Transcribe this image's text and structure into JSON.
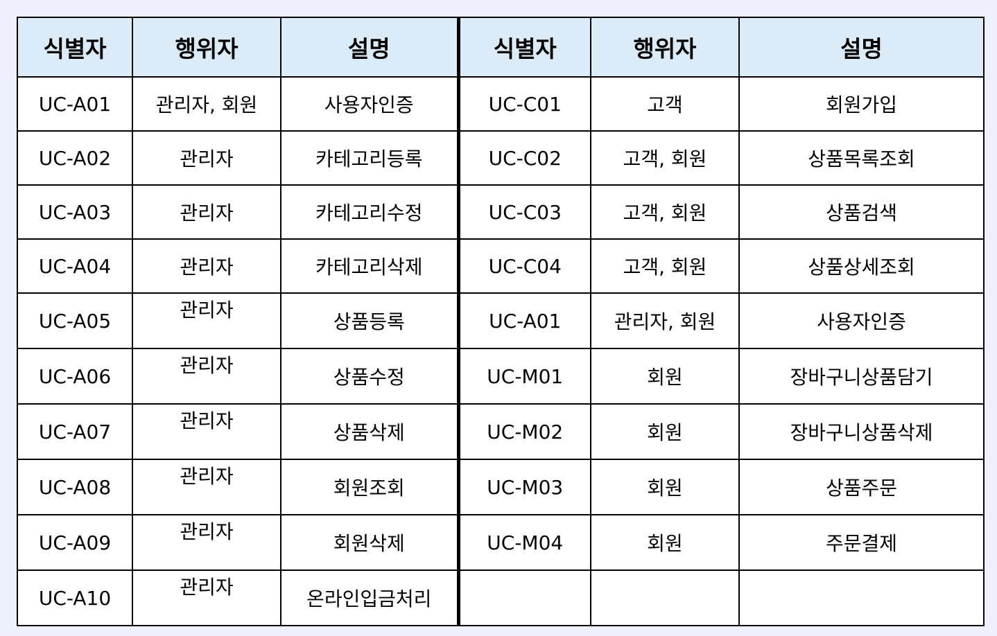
{
  "headers": [
    "식별자",
    "행위자",
    "설명",
    "식별자",
    "행위자",
    "설명"
  ],
  "rows": [
    {
      "left": {
        "id": "UC-A01",
        "actor": "관리자, 회원",
        "desc": "사용자인증"
      },
      "right": {
        "id": "UC-C01",
        "actor": "고객",
        "desc": "회원가입"
      }
    },
    {
      "left": {
        "id": "UC-A02",
        "actor": "관리자",
        "desc": "카테고리등록"
      },
      "right": {
        "id": "UC-C02",
        "actor": "고객, 회원",
        "desc": "상품목록조회"
      }
    },
    {
      "left": {
        "id": "UC-A03",
        "actor": "관리자",
        "desc": "카테고리수정"
      },
      "right": {
        "id": "UC-C03",
        "actor": "고객, 회원",
        "desc": "상품검색"
      }
    },
    {
      "left": {
        "id": "UC-A04",
        "actor": "관리자",
        "desc": "카테고리삭제"
      },
      "right": {
        "id": "UC-C04",
        "actor": "고객, 회원",
        "desc": "상품상세조회"
      }
    },
    {
      "left": {
        "id": "UC-A05",
        "actor": "관리자",
        "desc": "상품등록"
      },
      "right": {
        "id": "UC-A01",
        "actor": "관리자, 회원",
        "desc": "사용자인증"
      }
    },
    {
      "left": {
        "id": "UC-A06",
        "actor": "관리자",
        "desc": "상품수정"
      },
      "right": {
        "id": "UC-M01",
        "actor": "회원",
        "desc": "장바구니상품담기"
      }
    },
    {
      "left": {
        "id": "UC-A07",
        "actor": "관리자",
        "desc": "상품삭제"
      },
      "right": {
        "id": "UC-M02",
        "actor": "회원",
        "desc": "장바구니상품삭제"
      }
    },
    {
      "left": {
        "id": "UC-A08",
        "actor": "관리자",
        "desc": "회원조회"
      },
      "right": {
        "id": "UC-M03",
        "actor": "회원",
        "desc": "상품주문"
      }
    },
    {
      "left": {
        "id": "UC-A09",
        "actor": "관리자",
        "desc": "회원삭제"
      },
      "right": {
        "id": "UC-M04",
        "actor": "회원",
        "desc": "주문결제"
      }
    },
    {
      "left": {
        "id": "UC-A10",
        "actor": "관리자",
        "desc": "온라인입금처리"
      },
      "right": {
        "id": "",
        "actor": "",
        "desc": ""
      }
    }
  ]
}
